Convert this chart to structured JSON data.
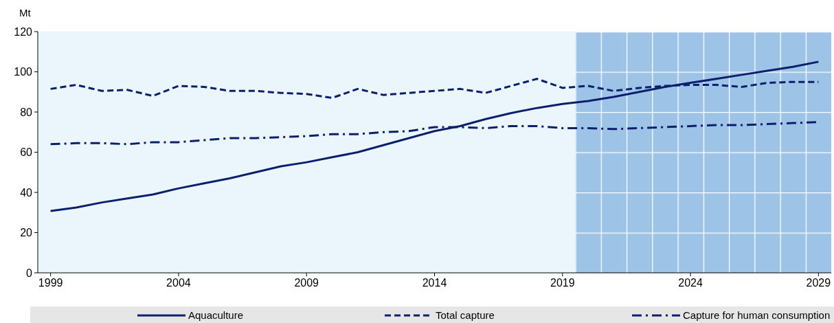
{
  "chart_data": {
    "type": "line",
    "ylabel": "Mt",
    "x": [
      1999,
      2000,
      2001,
      2002,
      2003,
      2004,
      2005,
      2006,
      2007,
      2008,
      2009,
      2010,
      2011,
      2012,
      2013,
      2014,
      2015,
      2016,
      2017,
      2018,
      2019,
      2020,
      2021,
      2022,
      2023,
      2024,
      2025,
      2026,
      2027,
      2028,
      2029
    ],
    "series": [
      {
        "name": "Aquaculture",
        "color": "#0c1f6e",
        "line_style": "solid",
        "values": [
          30.8,
          32.5,
          35,
          37,
          39,
          42,
          44.5,
          47,
          50,
          53,
          55,
          57.5,
          60,
          63.5,
          67,
          70.5,
          73,
          76.5,
          79.5,
          82,
          84,
          85.5,
          87.5,
          90,
          92.5,
          94.5,
          96.5,
          98.5,
          100.5,
          102.5,
          105
        ]
      },
      {
        "name": "Total capture",
        "color": "#0c1f6e",
        "line_style": "dashed",
        "values": [
          91.5,
          93.5,
          90.5,
          91,
          88,
          93,
          92.5,
          90.5,
          90.5,
          89.5,
          89,
          87,
          91.5,
          88.5,
          89.5,
          90.5,
          91.5,
          89.5,
          93,
          96.5,
          92,
          93,
          90.5,
          92,
          93,
          93.5,
          93.5,
          92.5,
          94.5,
          95,
          95
        ]
      },
      {
        "name": "Capture for human consumption",
        "color": "#0c1f6e",
        "line_style": "dashdot",
        "values": [
          64,
          64.5,
          64.5,
          64,
          65,
          65,
          66,
          67,
          67,
          67.5,
          68,
          69,
          69,
          70,
          70.5,
          72.5,
          72.5,
          72,
          73,
          73,
          72,
          72,
          71.5,
          72,
          72.5,
          73,
          73.5,
          73.5,
          74,
          74.5,
          75
        ]
      }
    ],
    "xlim": [
      1998.5,
      2029.5
    ],
    "xticks": [
      1999,
      2004,
      2009,
      2014,
      2019,
      2024,
      2029
    ],
    "ylim": [
      0,
      120
    ],
    "yticks": [
      0,
      20,
      40,
      60,
      80,
      100,
      120
    ],
    "bands": [
      {
        "axis": "x",
        "from": 2019.5,
        "to": 2029.5,
        "color": "#9dc3e6"
      }
    ],
    "grid": false,
    "legend": "bottom"
  }
}
